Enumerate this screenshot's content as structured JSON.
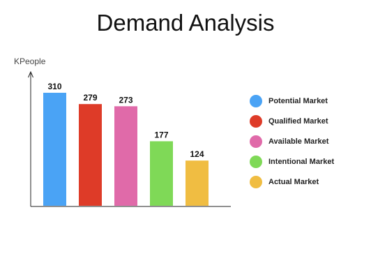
{
  "chart_data": {
    "type": "bar",
    "title": "Demand Analysis",
    "xlabel": "",
    "ylabel": "KPeople",
    "ylim": [
      0,
      380
    ],
    "grid": false,
    "legend_position": "right",
    "categories": [
      "Potential Market",
      "Qualified Market",
      "Available Market",
      "Intentional Market",
      "Actual Market"
    ],
    "values": [
      310,
      279,
      273,
      177,
      124
    ],
    "data_labels": [
      "310",
      "279",
      "273",
      "177",
      "124"
    ],
    "colors": [
      "#4aa3f5",
      "#de3b28",
      "#e06aa9",
      "#7fd957",
      "#f0bd42"
    ]
  },
  "legend": {
    "items": [
      {
        "label": "Potential Market",
        "color": "#4aa3f5"
      },
      {
        "label": "Qualified Market",
        "color": "#de3b28"
      },
      {
        "label": "Available Market",
        "color": "#e06aa9"
      },
      {
        "label": "Intentional Market",
        "color": "#7fd957"
      },
      {
        "label": "Actual Market",
        "color": "#f0bd42"
      }
    ]
  }
}
